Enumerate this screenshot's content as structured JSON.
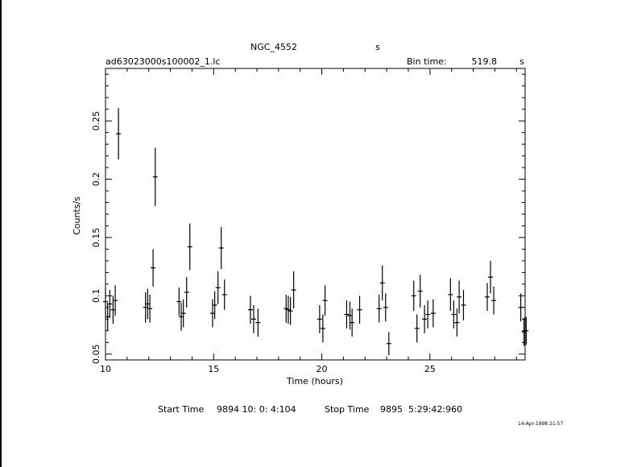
{
  "header": {
    "object": "NGC_4552",
    "object_unit": "s",
    "file": "ad63023000s100002_1.lc",
    "bin_label": "Bin time:",
    "bin_value": "519.8",
    "bin_unit": "s"
  },
  "footer": {
    "start_label": "Start Time",
    "start_value": "9894 10: 0: 4:104",
    "stop_label": "Stop Time",
    "stop_value": "9895  5:29:42:960",
    "date_stamp": "14-Apr-1998 21:57"
  },
  "chart_data": {
    "type": "scatter",
    "title": "NGC_4552",
    "xlabel": "Time (hours)",
    "ylabel": "Counts/s",
    "xlim": [
      10,
      29.4
    ],
    "ylim": [
      0.045,
      0.295
    ],
    "xticks": [
      10,
      15,
      20,
      25
    ],
    "xtick_labels": [
      "10",
      "15",
      "20",
      "25"
    ],
    "yticks": [
      0.05,
      0.1,
      0.15,
      0.2,
      0.25
    ],
    "ytick_labels": [
      "0.05",
      "0.1",
      "0.15",
      "0.2",
      "0.25"
    ],
    "grid": false,
    "legend": "none",
    "error_bars": true,
    "x": [
      10.0,
      10.1,
      10.2,
      10.35,
      10.45,
      10.6,
      11.85,
      11.95,
      12.05,
      12.2,
      12.3,
      13.4,
      13.5,
      13.6,
      13.75,
      13.9,
      14.95,
      15.05,
      15.2,
      15.35,
      15.5,
      16.7,
      16.85,
      17.05,
      18.35,
      18.45,
      18.55,
      18.7,
      19.9,
      20.05,
      20.15,
      21.15,
      21.3,
      21.4,
      21.75,
      22.65,
      22.8,
      22.95,
      23.1,
      24.25,
      24.4,
      24.55,
      24.75,
      24.9,
      25.15,
      25.95,
      26.1,
      26.25,
      26.35,
      26.55,
      27.65,
      27.8,
      27.95,
      29.2,
      29.35,
      29.45
    ],
    "y": [
      0.095,
      0.082,
      0.093,
      0.088,
      0.096,
      0.239,
      0.09,
      0.093,
      0.089,
      0.124,
      0.202,
      0.095,
      0.082,
      0.085,
      0.103,
      0.142,
      0.085,
      0.092,
      0.107,
      0.141,
      0.101,
      0.088,
      0.08,
      0.077,
      0.089,
      0.088,
      0.087,
      0.105,
      0.08,
      0.072,
      0.096,
      0.084,
      0.083,
      0.077,
      0.088,
      0.089,
      0.111,
      0.09,
      0.059,
      0.1,
      0.072,
      0.104,
      0.08,
      0.084,
      0.085,
      0.101,
      0.084,
      0.077,
      0.099,
      0.092,
      0.099,
      0.116,
      0.096,
      0.09,
      0.069,
      0.07
    ],
    "yerr": [
      0.012,
      0.012,
      0.012,
      0.012,
      0.013,
      0.022,
      0.013,
      0.013,
      0.012,
      0.016,
      0.025,
      0.012,
      0.012,
      0.012,
      0.013,
      0.02,
      0.012,
      0.012,
      0.014,
      0.018,
      0.013,
      0.012,
      0.012,
      0.012,
      0.012,
      0.012,
      0.012,
      0.016,
      0.012,
      0.012,
      0.013,
      0.012,
      0.012,
      0.012,
      0.012,
      0.012,
      0.015,
      0.012,
      0.01,
      0.013,
      0.012,
      0.014,
      0.012,
      0.012,
      0.012,
      0.014,
      0.012,
      0.012,
      0.014,
      0.013,
      0.012,
      0.014,
      0.012,
      0.012,
      0.012,
      0.012
    ]
  }
}
